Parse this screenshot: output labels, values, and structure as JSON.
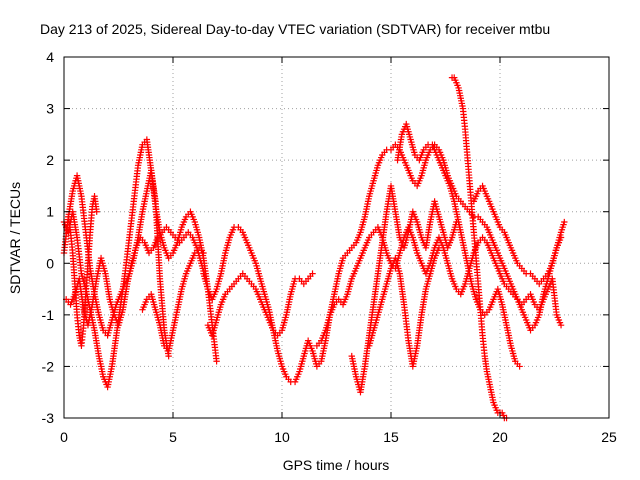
{
  "chart_data": {
    "type": "scatter",
    "title": "Day 213 of 2025, Sidereal Day-to-day VTEC variation (SDTVAR) for receiver mtbu",
    "xlabel": "GPS time / hours",
    "ylabel": "SDTVAR / TECUs",
    "xlim": [
      0,
      25
    ],
    "ylim": [
      -3,
      4
    ],
    "x_ticks": [
      0,
      5,
      10,
      15,
      20,
      25
    ],
    "x_tick_labels": [
      "0",
      "5",
      "10",
      "15",
      "20",
      "25"
    ],
    "y_ticks": [
      -3,
      -2,
      -1,
      0,
      1,
      2,
      3,
      4
    ],
    "y_tick_labels": [
      "-3",
      "-2",
      "-1",
      "0",
      "1",
      "2",
      "3",
      "4"
    ],
    "grid": true,
    "marker": "+",
    "color": "#ff0000",
    "series": [
      {
        "name": "track-1",
        "x": [
          0.0,
          0.2,
          0.4,
          0.6,
          0.8,
          1.0,
          1.2,
          1.4,
          1.6,
          1.8,
          2.0,
          2.2,
          2.4,
          2.6,
          2.8,
          3.0,
          3.2,
          3.4,
          3.6,
          3.8,
          4.0,
          4.2,
          4.4,
          4.6,
          4.8,
          5.0,
          5.2,
          5.4,
          5.6,
          5.8,
          6.0,
          6.2,
          6.4,
          6.6,
          6.8,
          7.0
        ],
        "y": [
          0.8,
          0.6,
          1.0,
          0.5,
          -0.2,
          -0.5,
          -0.9,
          -1.3,
          -1.8,
          -2.2,
          -2.4,
          -2.0,
          -1.4,
          -0.8,
          -0.2,
          0.5,
          1.2,
          1.9,
          2.3,
          2.4,
          1.8,
          1.1,
          0.6,
          0.3,
          0.1,
          0.2,
          0.4,
          0.7,
          0.9,
          1.0,
          0.8,
          0.5,
          0.1,
          -0.5,
          -1.2,
          -1.9
        ]
      },
      {
        "name": "track-2",
        "x": [
          0.0,
          0.2,
          0.4,
          0.6,
          0.8,
          1.0,
          1.2,
          1.4,
          1.6,
          1.8,
          2.0,
          2.2,
          2.4,
          2.6,
          2.8,
          3.0,
          3.2,
          3.4,
          3.6,
          3.8,
          4.0,
          4.2,
          4.4,
          4.6,
          4.8
        ],
        "y": [
          0.2,
          0.9,
          1.4,
          1.7,
          1.3,
          0.6,
          -0.1,
          -0.6,
          -1.0,
          -1.3,
          -1.4,
          -1.1,
          -0.8,
          -0.6,
          -0.4,
          -0.2,
          0.1,
          0.5,
          1.0,
          1.4,
          1.8,
          1.2,
          -0.3,
          -1.3,
          -1.8
        ]
      },
      {
        "name": "track-3",
        "x": [
          0.1,
          0.3,
          0.5,
          0.7,
          0.9,
          1.1,
          1.3,
          1.5,
          1.7,
          1.9,
          2.1,
          2.3,
          2.5,
          2.7,
          2.9,
          3.1,
          3.3,
          3.5,
          3.7,
          3.9,
          4.1,
          4.3,
          4.5,
          4.7,
          4.9,
          5.1,
          5.3,
          5.5,
          5.7,
          5.9,
          6.1,
          6.3,
          6.5
        ],
        "y": [
          -0.7,
          -0.8,
          -0.6,
          -0.3,
          -0.9,
          -1.2,
          -0.8,
          -0.3,
          0.1,
          -0.2,
          -0.7,
          -1.0,
          -1.2,
          -0.9,
          -0.4,
          0.0,
          0.3,
          0.5,
          0.4,
          0.2,
          0.3,
          0.5,
          0.6,
          0.7,
          0.6,
          0.5,
          0.4,
          0.5,
          0.6,
          0.5,
          0.3,
          0.0,
          -0.3
        ]
      },
      {
        "name": "track-4",
        "x": [
          6.4,
          6.6,
          6.8,
          7.0,
          7.2,
          7.4,
          7.6,
          7.8,
          8.0,
          8.2,
          8.4,
          8.6,
          8.8,
          9.0,
          9.2,
          9.4,
          9.6,
          9.8,
          10.0,
          10.2,
          10.4,
          10.6,
          10.8,
          11.0,
          11.2,
          11.4,
          11.6,
          11.8,
          12.0,
          12.2,
          12.4,
          12.6,
          12.8,
          13.0,
          13.2,
          13.4,
          13.6,
          13.8,
          14.0,
          14.2,
          14.4,
          14.6,
          14.8,
          15.0,
          15.2,
          15.4,
          15.6,
          15.8,
          16.0,
          16.2,
          16.4,
          16.6,
          16.8,
          17.0,
          17.2,
          17.4,
          17.6,
          17.8,
          18.0,
          18.2,
          18.4,
          18.6,
          18.8,
          19.0,
          19.2,
          19.4,
          19.6,
          19.8,
          20.0,
          20.2,
          20.4,
          20.6,
          20.8,
          21.0,
          21.2,
          21.4,
          21.6,
          21.8,
          22.0,
          22.2,
          22.4,
          22.6,
          22.8,
          22.95
        ],
        "y": [
          -0.2,
          -0.5,
          -0.7,
          -0.5,
          -0.2,
          0.2,
          0.5,
          0.7,
          0.7,
          0.6,
          0.4,
          0.2,
          0.0,
          -0.3,
          -0.6,
          -0.9,
          -1.3,
          -1.7,
          -2.0,
          -2.2,
          -2.3,
          -2.3,
          -2.1,
          -1.8,
          -1.5,
          -1.7,
          -2.0,
          -1.9,
          -1.5,
          -1.0,
          -0.6,
          -0.2,
          0.1,
          0.2,
          0.3,
          0.4,
          0.6,
          0.9,
          1.3,
          1.6,
          1.9,
          2.1,
          2.2,
          2.2,
          2.3,
          2.2,
          2.0,
          1.8,
          1.6,
          1.5,
          1.7,
          2.0,
          2.2,
          2.3,
          2.2,
          2.0,
          1.7,
          1.5,
          1.3,
          1.2,
          1.1,
          1.0,
          0.9,
          0.9,
          0.8,
          0.7,
          0.5,
          0.3,
          0.1,
          -0.1,
          -0.3,
          -0.5,
          -0.7,
          -0.9,
          -1.1,
          -1.3,
          -1.2,
          -1.0,
          -0.6,
          -0.3,
          0.0,
          0.3,
          0.6,
          0.8
        ]
      },
      {
        "name": "track-5",
        "x": [
          6.6,
          6.8,
          7.0,
          7.2,
          7.4,
          7.6,
          7.8,
          8.0,
          8.2,
          8.4,
          8.6,
          8.8,
          9.0,
          9.2,
          9.4,
          9.6,
          9.8,
          10.0,
          10.2,
          10.4,
          10.6,
          10.8,
          11.0,
          11.2,
          11.4
        ],
        "y": [
          -1.2,
          -1.4,
          -1.1,
          -0.8,
          -0.6,
          -0.5,
          -0.4,
          -0.3,
          -0.2,
          -0.3,
          -0.4,
          -0.5,
          -0.7,
          -0.9,
          -1.1,
          -1.3,
          -1.4,
          -1.3,
          -1.0,
          -0.6,
          -0.3,
          -0.3,
          -0.4,
          -0.3,
          -0.2
        ]
      },
      {
        "name": "track-6",
        "x": [
          11.6,
          11.8,
          12.0,
          12.2,
          12.4,
          12.6,
          12.8,
          13.0,
          13.2,
          13.4,
          13.6,
          13.8,
          14.0,
          14.2,
          14.4,
          14.6,
          14.8,
          15.0,
          15.2,
          15.4,
          15.6,
          15.8,
          16.0,
          16.2,
          16.4,
          16.6,
          16.8,
          17.0,
          17.2,
          17.4,
          17.6,
          17.8,
          18.0,
          18.2,
          18.4,
          18.6,
          18.8,
          19.0,
          19.2,
          19.4,
          19.6,
          19.8,
          20.0,
          20.2,
          20.4,
          20.6,
          20.8,
          21.0,
          21.2,
          21.4,
          21.6,
          21.8,
          22.0,
          22.2,
          22.4,
          22.6,
          22.8
        ],
        "y": [
          -1.6,
          -1.5,
          -1.3,
          -1.0,
          -0.8,
          -0.7,
          -0.8,
          -0.6,
          -0.3,
          -0.1,
          0.1,
          0.3,
          0.5,
          0.6,
          0.7,
          0.5,
          0.2,
          0.0,
          -0.1,
          0.2,
          0.5,
          0.7,
          0.5,
          0.2,
          0.0,
          -0.2,
          0.0,
          0.3,
          0.5,
          0.3,
          0.0,
          -0.3,
          -0.5,
          -0.6,
          -0.4,
          -0.1,
          0.2,
          0.4,
          0.5,
          0.4,
          0.2,
          0.0,
          -0.2,
          -0.4,
          -0.5,
          -0.6,
          -0.7,
          -0.8,
          -0.7,
          -0.6,
          -0.8,
          -0.9,
          -0.7,
          -0.5,
          -0.3,
          -1.0,
          -1.2
        ]
      },
      {
        "name": "track-7",
        "x": [
          13.2,
          13.4,
          13.6,
          13.8,
          14.0,
          14.2,
          14.4,
          14.6,
          14.8,
          15.0,
          15.2,
          15.4,
          15.6,
          15.8,
          16.0,
          16.2,
          16.4,
          16.6,
          16.8,
          17.0,
          17.2,
          17.4,
          17.6,
          17.8,
          18.0
        ],
        "y": [
          -1.8,
          -2.2,
          -2.5,
          -2.0,
          -1.4,
          -0.8,
          -0.2,
          0.4,
          1.0,
          1.5,
          1.0,
          0.5,
          0.3,
          0.6,
          1.0,
          0.8,
          0.5,
          0.3,
          0.8,
          1.2,
          0.9,
          0.6,
          0.3,
          0.5,
          0.8
        ]
      },
      {
        "name": "track-8",
        "x": [
          17.8,
          17.9,
          18.0,
          18.1,
          18.2,
          18.3,
          18.4,
          18.5,
          18.6,
          18.7,
          18.8,
          18.9,
          19.0,
          19.1,
          19.2,
          19.3,
          19.4,
          19.5,
          19.6,
          19.7,
          19.8,
          19.9,
          20.0,
          20.1,
          20.2,
          20.3
        ],
        "y": [
          3.6,
          3.6,
          3.5,
          3.4,
          3.2,
          3.0,
          2.6,
          2.1,
          1.6,
          1.1,
          0.6,
          0.1,
          -0.4,
          -0.9,
          -1.4,
          -1.8,
          -2.1,
          -2.3,
          -2.5,
          -2.7,
          -2.8,
          -2.9,
          -2.9,
          -2.9,
          -3.0,
          -3.0
        ]
      },
      {
        "name": "track-9",
        "x": [
          15.3,
          15.5,
          15.7,
          15.9,
          16.1,
          16.3,
          16.5,
          16.7,
          16.9,
          17.1,
          17.3,
          17.5,
          17.7,
          17.9,
          18.1,
          18.3,
          18.5,
          18.7,
          18.9,
          19.1,
          19.3,
          19.5,
          19.7,
          19.9,
          20.1,
          20.3,
          20.5,
          20.7,
          20.9
        ],
        "y": [
          2.0,
          2.5,
          2.7,
          2.4,
          2.1,
          2.0,
          2.2,
          2.3,
          2.3,
          2.1,
          1.9,
          1.7,
          1.5,
          1.2,
          0.8,
          0.4,
          0.0,
          -0.4,
          -0.7,
          -0.9,
          -1.0,
          -0.9,
          -0.7,
          -0.5,
          -0.8,
          -1.2,
          -1.6,
          -1.9,
          -2.0
        ]
      },
      {
        "name": "track-10",
        "x": [
          18.8,
          19.0,
          19.2,
          19.4,
          19.6,
          19.8,
          20.0,
          20.2,
          20.4,
          20.6,
          20.8,
          21.0,
          21.2,
          21.4,
          21.6,
          21.8,
          22.0,
          22.2,
          22.4,
          22.6,
          22.8
        ],
        "y": [
          1.2,
          1.4,
          1.5,
          1.3,
          1.1,
          0.9,
          0.7,
          0.6,
          0.4,
          0.2,
          0.0,
          -0.1,
          -0.2,
          -0.2,
          -0.3,
          -0.4,
          -0.3,
          -0.2,
          0.0,
          0.3,
          0.5
        ]
      },
      {
        "name": "track-11",
        "x": [
          14.0,
          14.2,
          14.4,
          14.6,
          14.8,
          15.0,
          15.2,
          15.4,
          15.6,
          15.8,
          16.0,
          16.2,
          16.4,
          16.6,
          16.8,
          17.0,
          17.2
        ],
        "y": [
          -1.6,
          -1.3,
          -1.0,
          -0.7,
          -0.4,
          -0.1,
          0.1,
          -0.2,
          -0.8,
          -1.5,
          -2.0,
          -1.6,
          -1.0,
          -0.5,
          -0.2,
          0.1,
          0.3
        ]
      },
      {
        "name": "track-12",
        "x": [
          3.6,
          3.8,
          4.0,
          4.2,
          4.4,
          4.6,
          4.8,
          5.0,
          5.2,
          5.4,
          5.6,
          5.8,
          6.0,
          6.2,
          6.4
        ],
        "y": [
          -0.9,
          -0.7,
          -0.6,
          -0.9,
          -1.2,
          -1.6,
          -1.7,
          -1.3,
          -0.9,
          -0.5,
          -0.2,
          0.0,
          0.2,
          0.3,
          0.2
        ]
      },
      {
        "name": "track-13",
        "x": [
          0.2,
          0.3,
          0.4,
          0.5,
          0.6,
          0.7,
          0.8,
          0.9,
          1.0,
          1.1,
          1.2,
          1.3,
          1.4,
          1.5
        ],
        "y": [
          0.9,
          0.6,
          0.2,
          -0.4,
          -1.0,
          -1.4,
          -1.6,
          -1.2,
          -0.6,
          0.0,
          0.6,
          1.1,
          1.3,
          1.0
        ]
      }
    ]
  }
}
